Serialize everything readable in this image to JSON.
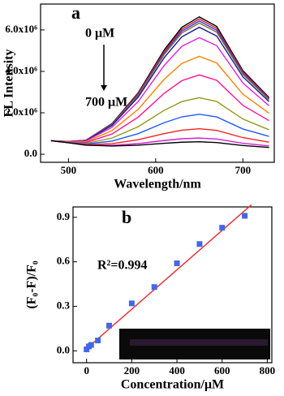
{
  "chart_data": [
    {
      "type": "line",
      "label": "a",
      "xlabel": "Wavelength/nm",
      "ylabel": "FL Intensity",
      "annotations": [
        "0 μM",
        "700 μM"
      ],
      "xlim": [
        468,
        736
      ],
      "ylim": [
        -390000,
        7250000
      ],
      "xticks": [
        500,
        600,
        700
      ],
      "yticks": [
        {
          "value": 0,
          "label": "0.0"
        },
        {
          "value": 2000000,
          "label": "2.0x10⁶"
        },
        {
          "value": 4000000,
          "label": "4.0x10⁶"
        },
        {
          "value": 6000000,
          "label": "6.0x10⁶"
        }
      ],
      "x": [
        480,
        500,
        520,
        550,
        580,
        610,
        630,
        650,
        670,
        700,
        730
      ],
      "series": [
        {
          "color": "#000000",
          "values": [
            650000,
            614000,
            676000,
            1482000,
            2968000,
            5050000,
            6128000,
            6630000,
            6172000,
            4040000,
            2740000
          ]
        },
        {
          "color": "#e8141c",
          "values": [
            650000,
            613000,
            672000,
            1464000,
            2926000,
            4975000,
            6036000,
            6530000,
            6079000,
            3980000,
            2700000
          ]
        },
        {
          "color": "#1f3fff",
          "values": [
            650000,
            612000,
            668000,
            1446000,
            2884000,
            4900000,
            5944000,
            6430000,
            5986000,
            3920000,
            2660000
          ]
        },
        {
          "color": "#8b6f2a",
          "values": [
            650000,
            611000,
            664000,
            1428000,
            2842000,
            4825000,
            5852000,
            6330000,
            5893000,
            3860000,
            2620000
          ]
        },
        {
          "color": "#1a1a8c",
          "values": [
            650000,
            609000,
            656000,
            1392000,
            2758000,
            4675000,
            5668000,
            6130000,
            5707000,
            3740000,
            2540000
          ]
        },
        {
          "color": "#e020e0",
          "values": [
            650000,
            604000,
            636000,
            1302000,
            2548000,
            4300000,
            5208000,
            5630000,
            5242000,
            3440000,
            2340000
          ]
        },
        {
          "color": "#ff7f00",
          "values": [
            650000,
            595000,
            600000,
            1140000,
            2170000,
            3625000,
            4380000,
            4730000,
            4405000,
            2900000,
            1980000
          ]
        },
        {
          "color": "#ff1493",
          "values": [
            650000,
            586000,
            564000,
            978000,
            1792000,
            2950000,
            3552000,
            3830000,
            3568000,
            2360000,
            1620000
          ]
        },
        {
          "color": "#8c9a1a",
          "values": [
            650000,
            575000,
            520000,
            780000,
            1330000,
            2125000,
            2540000,
            2730000,
            2545000,
            1700000,
            1180000
          ]
        },
        {
          "color": "#1e5bff",
          "values": [
            650000,
            567000,
            488000,
            636000,
            994000,
            1525000,
            1804000,
            1930000,
            1801000,
            1220000,
            860000
          ]
        },
        {
          "color": "#ff2020",
          "values": [
            650000,
            560000,
            460000,
            510000,
            700000,
            1000000,
            1160000,
            1230000,
            1150000,
            800000,
            580000
          ]
        },
        {
          "color": "#d020d0",
          "values": [
            650000,
            556000,
            442000,
            429000,
            511000,
            663000,
            746000,
            780000,
            732000,
            530000,
            400000
          ]
        },
        {
          "color": "#000000",
          "values": [
            650000,
            554000,
            435000,
            397000,
            435000,
            528000,
            580000,
            600000,
            564000,
            422000,
            328000
          ]
        }
      ]
    },
    {
      "type": "scatter",
      "label": "b",
      "xlabel": "Concentration/μM",
      "ylabel": "(F₀-F)/F₀",
      "annotations": [
        "R²=0.994"
      ],
      "xlim": [
        -60,
        820
      ],
      "ylim": [
        -0.08,
        0.97
      ],
      "xticks": [
        0,
        200,
        400,
        600,
        800
      ],
      "yticks": [
        {
          "value": 0,
          "label": "0.0"
        },
        0.3,
        0.6,
        0.9
      ],
      "fit": {
        "color": "#e8343c",
        "x": [
          0,
          730
        ],
        "values": [
          0.015,
          0.985
        ]
      },
      "series": [
        {
          "color": "#4169e1",
          "x": [
            0,
            10,
            20,
            50,
            100,
            200,
            300,
            400,
            500,
            600,
            700
          ],
          "values": [
            0.01,
            0.03,
            0.04,
            0.07,
            0.17,
            0.32,
            0.43,
            0.59,
            0.72,
            0.83,
            0.91
          ]
        }
      ]
    }
  ]
}
